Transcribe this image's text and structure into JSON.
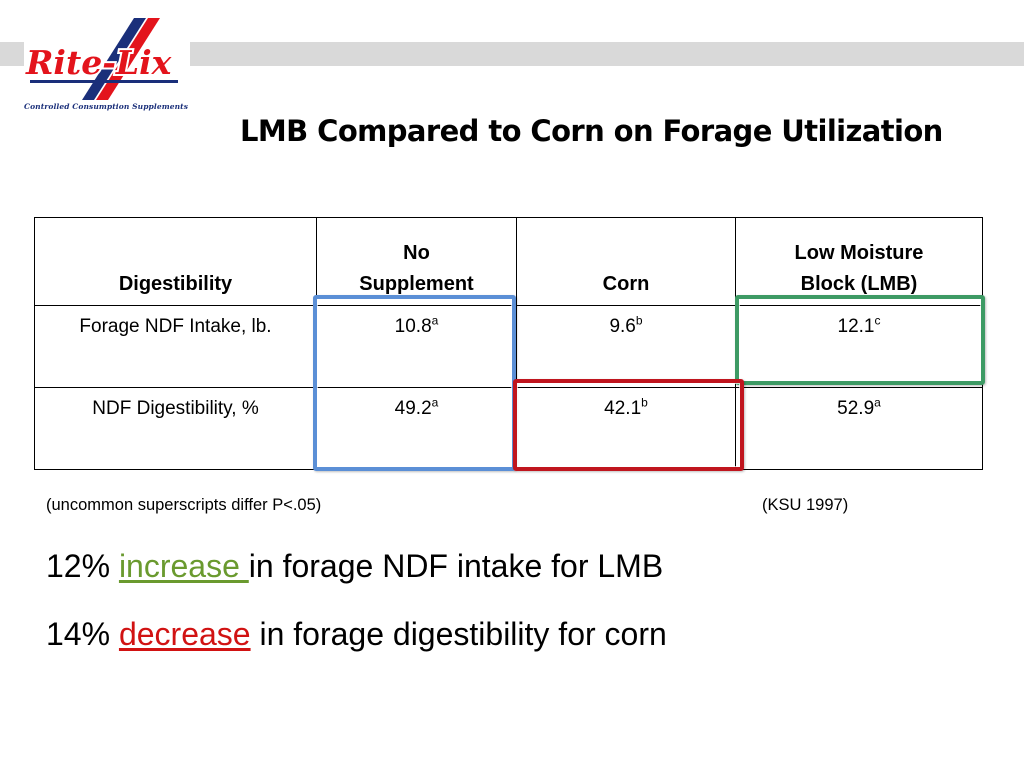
{
  "logo": {
    "brand": "Rite-Lix",
    "tagline": "Controlled Consumption Supplements",
    "colors": {
      "red": "#e3141c",
      "navy": "#1a2f7a"
    }
  },
  "slide": {
    "title": "LMB Compared to Corn on Forage Utilization"
  },
  "table": {
    "headers": [
      {
        "lines": [
          "Digestibility"
        ]
      },
      {
        "lines": [
          "No",
          "Supplement"
        ]
      },
      {
        "lines": [
          "Corn"
        ]
      },
      {
        "lines": [
          "Low Moisture",
          "Block (LMB)"
        ]
      }
    ],
    "rows": [
      {
        "label": "Forage NDF Intake, lb.",
        "cells": [
          {
            "value": "10.8",
            "sup": "a"
          },
          {
            "value": "9.6",
            "sup": "b"
          },
          {
            "value": "12.1",
            "sup": "c"
          }
        ]
      },
      {
        "label": "NDF Digestibility, %",
        "cells": [
          {
            "value": "49.2",
            "sup": "a"
          },
          {
            "value": "42.1",
            "sup": "b"
          },
          {
            "value": "52.9",
            "sup": "a"
          }
        ]
      }
    ],
    "highlight_colors": {
      "blue": "#5b8fd6",
      "green": "#3d9a64",
      "red": "#c0151e"
    }
  },
  "notes": {
    "left": "(uncommon superscripts differ P<.05)",
    "right": "(KSU 1997)"
  },
  "statements": [
    {
      "before": "12% ",
      "keyword": "increase ",
      "after": "in forage NDF intake for LMB",
      "keyword_color": "#6a9a2f"
    },
    {
      "before": "14% ",
      "keyword": "decrease",
      "after": " in forage digestibility for corn",
      "keyword_color": "#d11212"
    }
  ]
}
